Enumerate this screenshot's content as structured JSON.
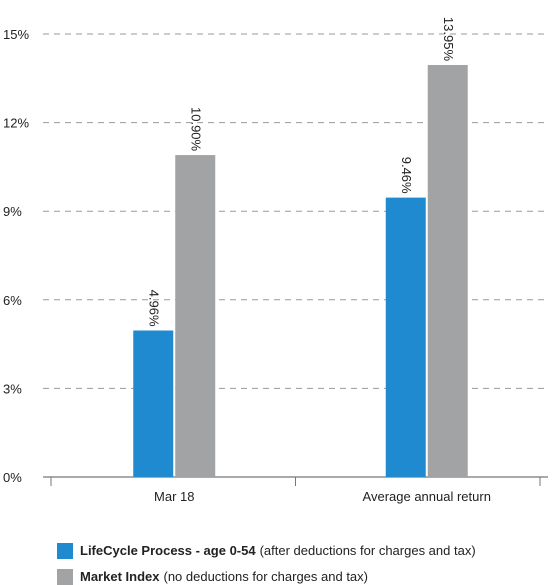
{
  "chart_data": {
    "type": "bar",
    "categories": [
      "Mar 18",
      "Average annual return"
    ],
    "series": [
      {
        "name": "LifeCycle Process - age 0-54",
        "values": [
          4.96,
          9.46
        ],
        "labels": [
          "4.96%",
          "9.46%"
        ],
        "color": "#1f8ad0"
      },
      {
        "name": "Market Index",
        "values": [
          10.9,
          13.95
        ],
        "labels": [
          "10.90%",
          "13.95%"
        ],
        "color": "#a2a3a5"
      }
    ],
    "ylim": [
      0,
      15
    ],
    "yticks": [
      0,
      3,
      6,
      9,
      12,
      15
    ],
    "ytick_labels": [
      "0%",
      "3%",
      "6%",
      "9%",
      "12%",
      "15%"
    ],
    "grid": true,
    "legend_position": "bottom-left"
  },
  "legend": [
    {
      "name": "LifeCycle Process - age 0-54",
      "desc": "(after deductions for charges and tax)",
      "color": "#1f8ad0"
    },
    {
      "name": "Market Index",
      "desc": "(no deductions for charges and tax)",
      "color": "#a2a3a5"
    }
  ]
}
